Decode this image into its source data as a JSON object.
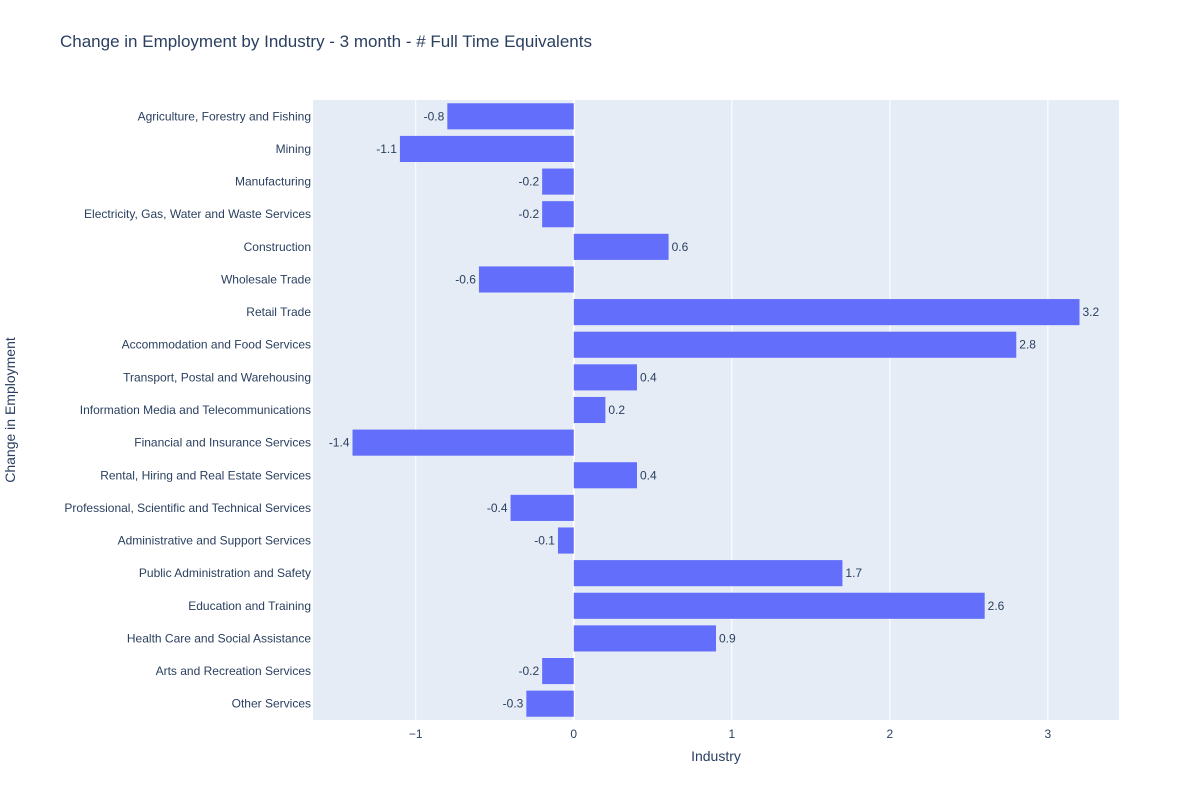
{
  "chart_data": {
    "type": "bar",
    "orientation": "horizontal",
    "title": "Change in Employment by Industry - 3 month - # Full Time Equivalents",
    "xlabel": "Industry",
    "ylabel": "Change in Employment",
    "xlim": [
      -1.65,
      3.45
    ],
    "xticks": [
      -1,
      0,
      1,
      2,
      3
    ],
    "xtick_labels": [
      "−1",
      "0",
      "1",
      "2",
      "3"
    ],
    "grid": true,
    "categories": [
      "Agriculture, Forestry and Fishing",
      "Mining",
      "Manufacturing",
      "Electricity, Gas, Water and Waste Services",
      "Construction",
      "Wholesale Trade",
      "Retail Trade",
      "Accommodation and Food Services",
      "Transport, Postal and Warehousing",
      "Information Media and Telecommunications",
      "Financial and Insurance Services",
      "Rental, Hiring and Real Estate Services",
      "Professional, Scientific and Technical Services",
      "Administrative and Support Services",
      "Public Administration and Safety",
      "Education and Training",
      "Health Care and Social Assistance",
      "Arts and Recreation Services",
      "Other Services"
    ],
    "values": [
      -0.8,
      -1.1,
      -0.2,
      -0.2,
      0.6,
      -0.6,
      3.2,
      2.8,
      0.4,
      0.2,
      -1.4,
      0.4,
      -0.4,
      -0.1,
      1.7,
      2.6,
      0.9,
      -0.2,
      -0.3
    ],
    "value_labels": [
      "-0.8",
      "-1.1",
      "-0.2",
      "-0.2",
      "0.6",
      "-0.6",
      "3.2",
      "2.8",
      "0.4",
      "0.2",
      "-1.4",
      "0.4",
      "-0.4",
      "-0.1",
      "1.7",
      "2.6",
      "0.9",
      "-0.2",
      "-0.3"
    ],
    "colors": {
      "bar": "#636efa",
      "plot_background": "#e5ecf6",
      "grid": "#ffffff",
      "text": "#2a3f5f"
    }
  }
}
